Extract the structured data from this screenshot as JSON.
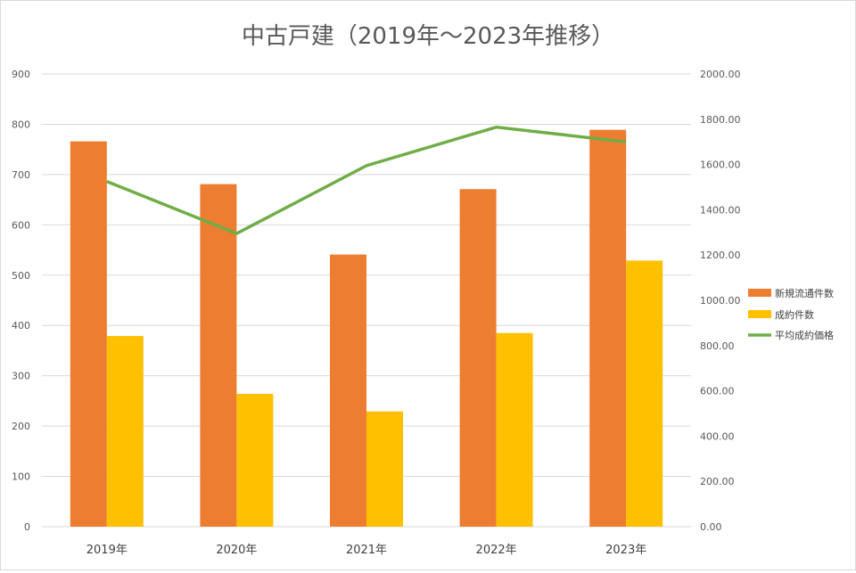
{
  "chart_data": {
    "type": "bar",
    "title": "中古戸建（2019年～2023年推移）",
    "categories": [
      "2019年",
      "2020年",
      "2021年",
      "2022年",
      "2023年"
    ],
    "series": [
      {
        "name": "新規流通件数",
        "type": "bar",
        "axis": "left",
        "color": "#ED7D31",
        "values": [
          766,
          681,
          541,
          671,
          789
        ]
      },
      {
        "name": "成約件数",
        "type": "bar",
        "axis": "left",
        "color": "#FFC000",
        "values": [
          379,
          264,
          229,
          385,
          529
        ]
      },
      {
        "name": "平均成約価格",
        "type": "line",
        "axis": "right",
        "color": "#70AD47",
        "values": [
          1525,
          1295,
          1595,
          1765,
          1700
        ]
      }
    ],
    "ylim_left": [
      0,
      900
    ],
    "yticks_left": [
      "0",
      "100",
      "200",
      "300",
      "400",
      "500",
      "600",
      "700",
      "800",
      "900"
    ],
    "ylim_right": [
      0,
      2000
    ],
    "yticks_right": [
      "0.00",
      "200.00",
      "400.00",
      "600.00",
      "800.00",
      "1000.00",
      "1200.00",
      "1400.00",
      "1600.00",
      "1800.00",
      "2000.00"
    ],
    "grid": true,
    "legend_position": "right"
  }
}
